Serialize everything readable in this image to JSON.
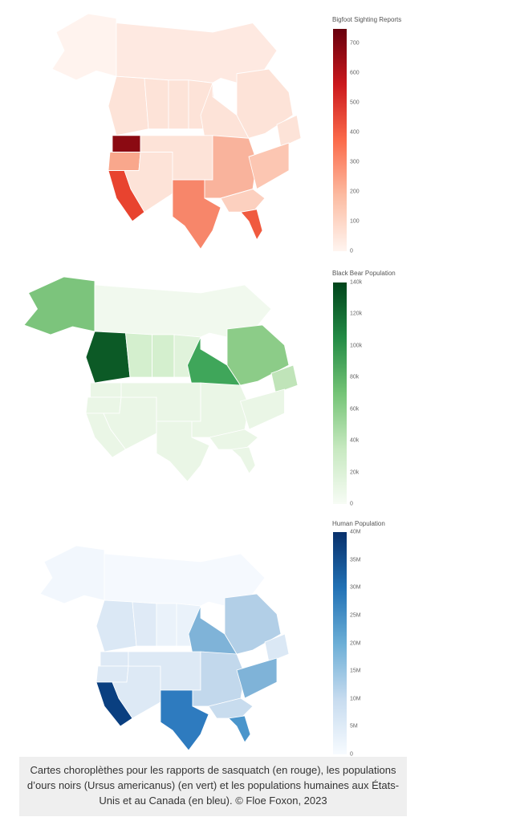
{
  "chart_data": [
    {
      "type": "choropleth",
      "title": "Bigfoot Sighting Reports",
      "colorscale": [
        "#fff5f0",
        "#fcbba1",
        "#fb6a4a",
        "#cb181d",
        "#67000d"
      ],
      "range": [
        0,
        750
      ],
      "ticks": [
        0,
        100,
        200,
        300,
        400,
        500,
        600,
        700
      ],
      "tick_labels": [
        "0",
        "100",
        "200",
        "300",
        "400",
        "500",
        "600",
        "700"
      ],
      "regions": {
        "Washington": 740,
        "Oregon": 250,
        "California": 420,
        "Texas": 300,
        "Florida": 380,
        "Ohio": 380,
        "Illinois": 330,
        "Michigan": 250,
        "other": 90
      }
    },
    {
      "type": "choropleth",
      "title": "Black Bear Population",
      "colorscale": [
        "#f7fcf5",
        "#c7e9c0",
        "#74c476",
        "#238b45",
        "#00441b"
      ],
      "range": [
        0,
        140000
      ],
      "ticks": [
        0,
        20000,
        40000,
        60000,
        80000,
        100000,
        120000,
        140000
      ],
      "tick_labels": [
        "0",
        "20k",
        "40k",
        "60k",
        "80k",
        "100k",
        "120k",
        "140k"
      ],
      "regions": {
        "British Columbia": 140000,
        "Alaska": 75000,
        "Ontario": 90000,
        "Quebec": 65000,
        "Alberta": 30000,
        "Saskatchewan": 30000,
        "other": 8000
      }
    },
    {
      "type": "choropleth",
      "title": "Human Population",
      "colorscale": [
        "#f7fbff",
        "#c6dbef",
        "#6baed6",
        "#2171b5",
        "#08306b"
      ],
      "range": [
        0,
        40000000
      ],
      "ticks": [
        0,
        5000000,
        10000000,
        15000000,
        20000000,
        25000000,
        30000000,
        35000000,
        40000000
      ],
      "tick_labels": [
        "0",
        "5M",
        "10M",
        "15M",
        "20M",
        "25M",
        "30M",
        "35M",
        "40M"
      ],
      "regions": {
        "California": 39000000,
        "Texas": 29000000,
        "Florida": 21000000,
        "Ontario": 14000000,
        "New York": 19000000,
        "Quebec": 8500000,
        "other": 4000000
      }
    }
  ],
  "caption": "Cartes choroplèthes pour les rapports de sasquatch (en rouge), les populations d’ours noirs (Ursus americanus) (en vert) et les populations humaines aux États-Unis et au Canada (en bleu). © Floe Foxon, 2023"
}
